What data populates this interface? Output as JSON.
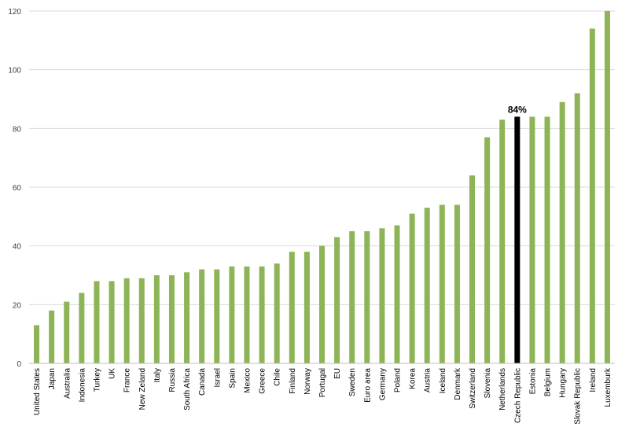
{
  "chart_data": {
    "type": "bar",
    "categories": [
      "United States",
      "Japan",
      "Australia",
      "Indonesia",
      "Turkey",
      "UK",
      "France",
      "New Zeland",
      "Italy",
      "Russia",
      "South Africa",
      "Canada",
      "Israel",
      "Spain",
      "Mexico",
      "Greece",
      "Chile",
      "Finland",
      "Norway",
      "Portugal",
      "EU",
      "Sweden",
      "Euro area",
      "Germany",
      "Poland",
      "Korea",
      "Austria",
      "Iceland",
      "Denmark",
      "Switzerland",
      "Slovenia",
      "Netherlands",
      "Czech Republic",
      "Estonia",
      "Belgium",
      "Hungary",
      "Slovak Republic",
      "Ireland",
      "Luxemburk"
    ],
    "values": [
      13,
      18,
      21,
      24,
      28,
      28,
      29,
      29,
      30,
      30,
      31,
      32,
      32,
      33,
      33,
      33,
      34,
      38,
      38,
      40,
      43,
      45,
      45,
      46,
      47,
      51,
      53,
      54,
      54,
      64,
      77,
      83,
      84,
      84,
      84,
      89,
      92,
      114,
      120
    ],
    "highlight_index": 32,
    "annotations": [
      {
        "category": "Czech Republic",
        "text": "84%"
      }
    ],
    "ylim": [
      0,
      120
    ],
    "yticks": [
      0,
      20,
      40,
      60,
      80,
      100,
      120
    ],
    "grid": true,
    "colors": {
      "bar": "#8db456",
      "highlight": "#000000",
      "grid": "#d9d9d9",
      "axis": "#bfbfbf"
    }
  }
}
